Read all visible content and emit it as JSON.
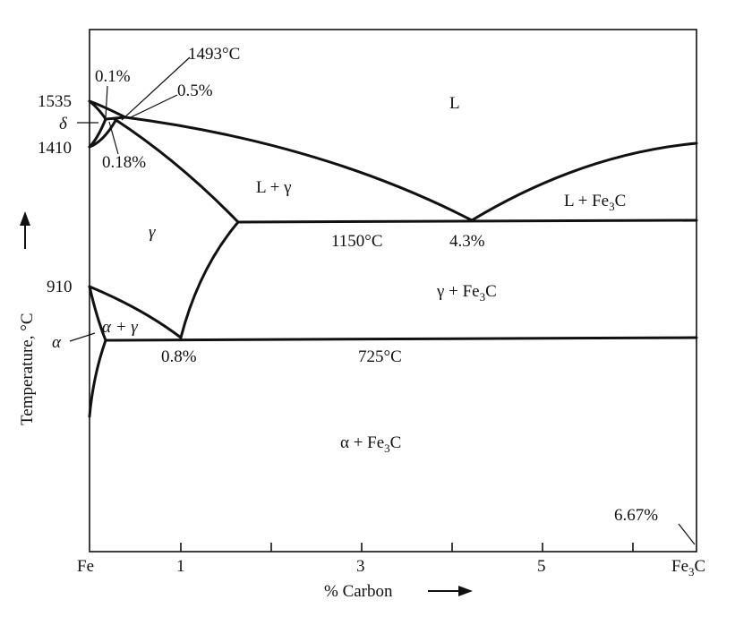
{
  "diagram": {
    "y_axis_label": "Temperature, °C",
    "x_axis_label": "% Carbon",
    "x_ticks": {
      "fe": "Fe",
      "t1": "1",
      "t3": "3",
      "t5": "5",
      "fe3c_main": "Fe",
      "fe3c_sub": "3",
      "fe3c_tail": "C"
    },
    "temperatures": {
      "t1535": "1535",
      "t1410": "1410",
      "t910": "910",
      "t1493": "1493°C",
      "t1150": "1150°C",
      "t725": "725°C"
    },
    "compositions": {
      "c01": "0.1%",
      "c05": "0.5%",
      "c018": "0.18%",
      "c43": "4.3%",
      "c08": "0.8%",
      "c667": "6.67%"
    },
    "phases": {
      "liquid": "L",
      "l_gamma": "L + γ",
      "l_fe3c_main": "L + Fe",
      "l_fe3c_sub": "3",
      "l_fe3c_tail": "C",
      "gamma": "γ",
      "gamma_fe3c_main": "γ + Fe",
      "gamma_fe3c_sub": "3",
      "gamma_fe3c_tail": "C",
      "alpha_gamma": "α + γ",
      "alpha_fe3c_main": "α + Fe",
      "alpha_fe3c_sub": "3",
      "alpha_fe3c_tail": "C",
      "delta": "δ",
      "alpha": "α"
    }
  }
}
